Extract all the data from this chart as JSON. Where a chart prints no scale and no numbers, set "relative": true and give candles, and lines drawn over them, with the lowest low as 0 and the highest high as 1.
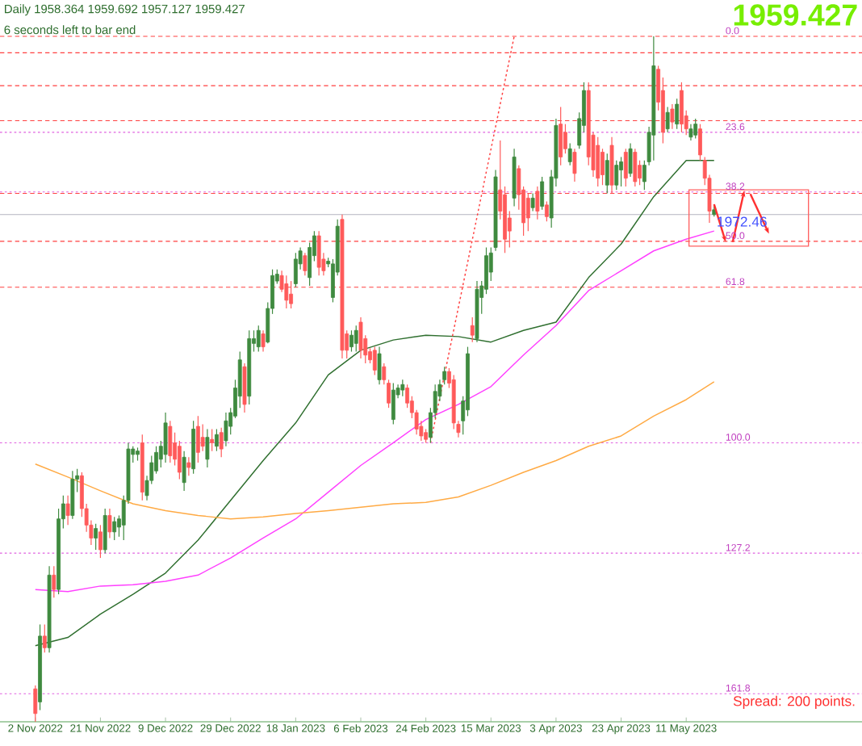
{
  "chart_data": {
    "type": "candlestick",
    "relative": true,
    "categories": [
      "2 Nov 2022",
      null,
      null,
      null,
      null,
      null,
      null,
      null,
      null,
      null,
      null,
      null,
      null,
      null,
      "21 Nov 2022",
      null,
      null,
      null,
      null,
      null,
      null,
      null,
      null,
      null,
      null,
      null,
      null,
      null,
      "9 Dec 2022",
      null,
      null,
      null,
      null,
      null,
      null,
      null,
      null,
      null,
      null,
      null,
      null,
      null,
      "29 Dec 2022",
      null,
      null,
      null,
      null,
      null,
      null,
      null,
      null,
      null,
      null,
      null,
      null,
      null,
      "18 Jan 2023",
      null,
      null,
      null,
      null,
      null,
      null,
      null,
      null,
      null,
      null,
      null,
      null,
      null,
      "6 Feb 2023",
      null,
      null,
      null,
      null,
      null,
      null,
      null,
      null,
      null,
      null,
      null,
      null,
      null,
      "24 Feb 2023",
      null,
      null,
      null,
      null,
      null,
      null,
      null,
      null,
      null,
      null,
      null,
      null,
      null,
      "15 Mar 2023",
      null,
      null,
      null,
      null,
      null,
      null,
      null,
      null,
      null,
      null,
      null,
      null,
      null,
      "3 Apr 2023",
      null,
      null,
      null,
      null,
      null,
      null,
      null,
      null,
      null,
      null,
      null,
      null,
      null,
      "23 Apr 2023",
      null,
      null,
      null,
      null,
      null,
      null,
      null,
      null,
      null,
      null,
      null,
      null,
      null,
      "11 May 2023",
      null,
      null,
      null,
      null,
      null,
      null
    ],
    "ohlc": [
      [
        0.048,
        0.053,
        0,
        0.012
      ],
      [
        0.029,
        0.142,
        0.017,
        0.125
      ],
      [
        0.125,
        0.142,
        0.101,
        0.108
      ],
      [
        0.108,
        0.227,
        0.101,
        0.214
      ],
      [
        0.214,
        0.227,
        0.181,
        0.193
      ],
      [
        0.193,
        0.311,
        0.186,
        0.296
      ],
      [
        0.296,
        0.33,
        0.282,
        0.318
      ],
      [
        0.318,
        0.33,
        0.287,
        0.301
      ],
      [
        0.301,
        0.366,
        0.296,
        0.354
      ],
      [
        0.354,
        0.369,
        0.335,
        0.359
      ],
      [
        0.359,
        0.364,
        0.299,
        0.311
      ],
      [
        0.311,
        0.318,
        0.277,
        0.287
      ],
      [
        0.287,
        0.294,
        0.258,
        0.268
      ],
      [
        0.268,
        0.289,
        0.251,
        0.282
      ],
      [
        0.277,
        0.287,
        0.239,
        0.251
      ],
      [
        0.251,
        0.311,
        0.246,
        0.301
      ],
      [
        0.301,
        0.311,
        0.268,
        0.277
      ],
      [
        0.277,
        0.299,
        0.265,
        0.292
      ],
      [
        0.284,
        0.301,
        0.27,
        0.296
      ],
      [
        0.287,
        0.33,
        0.265,
        0.323
      ],
      [
        0.323,
        0.407,
        0.318,
        0.398
      ],
      [
        0.39,
        0.402,
        0.378,
        0.398
      ],
      [
        0.39,
        0.4,
        0.381,
        0.395
      ],
      [
        0.407,
        0.419,
        0.323,
        0.335
      ],
      [
        0.33,
        0.359,
        0.323,
        0.352
      ],
      [
        0.352,
        0.388,
        0.347,
        0.378
      ],
      [
        0.366,
        0.402,
        0.362,
        0.393
      ],
      [
        0.383,
        0.41,
        0.371,
        0.402
      ],
      [
        0.39,
        0.451,
        0.378,
        0.436
      ],
      [
        0.431,
        0.439,
        0.378,
        0.388
      ],
      [
        0.407,
        0.422,
        0.374,
        0.383
      ],
      [
        0.402,
        0.41,
        0.354,
        0.364
      ],
      [
        0.349,
        0.395,
        0.337,
        0.386
      ],
      [
        0.378,
        0.386,
        0.359,
        0.371
      ],
      [
        0.369,
        0.439,
        0.362,
        0.427
      ],
      [
        0.431,
        0.446,
        0.378,
        0.393
      ],
      [
        0.415,
        0.434,
        0.395,
        0.402
      ],
      [
        0.383,
        0.427,
        0.371,
        0.415
      ],
      [
        0.412,
        0.427,
        0.395,
        0.407
      ],
      [
        0.402,
        0.427,
        0.395,
        0.419
      ],
      [
        0.422,
        0.429,
        0.386,
        0.398
      ],
      [
        0.41,
        0.451,
        0.402,
        0.439
      ],
      [
        0.431,
        0.458,
        0.419,
        0.451
      ],
      [
        0.446,
        0.499,
        0.443,
        0.487
      ],
      [
        0.475,
        0.54,
        0.458,
        0.528
      ],
      [
        0.518,
        0.523,
        0.451,
        0.463
      ],
      [
        0.475,
        0.571,
        0.463,
        0.559
      ],
      [
        0.552,
        0.571,
        0.54,
        0.559
      ],
      [
        0.547,
        0.578,
        0.54,
        0.571
      ],
      [
        0.566,
        0.571,
        0.54,
        0.547
      ],
      [
        0.554,
        0.612,
        0.552,
        0.603
      ],
      [
        0.603,
        0.66,
        0.595,
        0.651
      ],
      [
        0.643,
        0.66,
        0.639,
        0.653
      ],
      [
        0.651,
        0.658,
        0.627,
        0.631
      ],
      [
        0.639,
        0.651,
        0.603,
        0.615
      ],
      [
        0.624,
        0.643,
        0.603,
        0.61
      ],
      [
        0.639,
        0.684,
        0.634,
        0.675
      ],
      [
        0.668,
        0.692,
        0.66,
        0.687
      ],
      [
        0.68,
        0.684,
        0.651,
        0.658
      ],
      [
        0.648,
        0.699,
        0.636,
        0.692
      ],
      [
        0.68,
        0.716,
        0.672,
        0.709
      ],
      [
        0.709,
        0.716,
        0.651,
        0.663
      ],
      [
        0.675,
        0.684,
        0.651,
        0.658
      ],
      [
        0.668,
        0.677,
        0.663,
        0.672
      ],
      [
        0.619,
        0.675,
        0.612,
        0.668
      ],
      [
        0.656,
        0.733,
        0.651,
        0.723
      ],
      [
        0.733,
        0.74,
        0.53,
        0.542
      ],
      [
        0.566,
        0.571,
        0.53,
        0.542
      ],
      [
        0.547,
        0.571,
        0.54,
        0.564
      ],
      [
        0.552,
        0.578,
        0.54,
        0.571
      ],
      [
        0.583,
        0.59,
        0.53,
        0.542
      ],
      [
        0.559,
        0.564,
        0.523,
        0.535
      ],
      [
        0.54,
        0.545,
        0.523,
        0.528
      ],
      [
        0.542,
        0.547,
        0.506,
        0.513
      ],
      [
        0.499,
        0.547,
        0.492,
        0.537
      ],
      [
        0.518,
        0.523,
        0.492,
        0.499
      ],
      [
        0.494,
        0.499,
        0.458,
        0.465
      ],
      [
        0.441,
        0.494,
        0.434,
        0.484
      ],
      [
        0.477,
        0.492,
        0.472,
        0.487
      ],
      [
        0.484,
        0.499,
        0.475,
        0.492
      ],
      [
        0.487,
        0.492,
        0.458,
        0.465
      ],
      [
        0.468,
        0.475,
        0.443,
        0.451
      ],
      [
        0.451,
        0.455,
        0.419,
        0.427
      ],
      [
        0.431,
        0.439,
        0.41,
        0.417
      ],
      [
        0.422,
        0.427,
        0.407,
        0.412
      ],
      [
        0.415,
        0.458,
        0.407,
        0.451
      ],
      [
        0.451,
        0.492,
        0.443,
        0.482
      ],
      [
        0.475,
        0.499,
        0.468,
        0.492
      ],
      [
        0.499,
        0.518,
        0.492,
        0.511
      ],
      [
        0.511,
        0.516,
        0.487,
        0.494
      ],
      [
        0.499,
        0.506,
        0.427,
        0.436
      ],
      [
        0.434,
        0.439,
        0.415,
        0.422
      ],
      [
        0.439,
        0.475,
        0.419,
        0.468
      ],
      [
        0.455,
        0.547,
        0.446,
        0.537
      ],
      [
        0.578,
        0.59,
        0.554,
        0.564
      ],
      [
        0.559,
        0.643,
        0.554,
        0.631
      ],
      [
        0.619,
        0.643,
        0.595,
        0.636
      ],
      [
        0.631,
        0.692,
        0.624,
        0.68
      ],
      [
        0.656,
        0.692,
        0.643,
        0.684
      ],
      [
        0.692,
        0.805,
        0.687,
        0.795
      ],
      [
        0.776,
        0.848,
        0.733,
        0.745
      ],
      [
        0.769,
        0.781,
        0.684,
        0.704
      ],
      [
        0.735,
        0.745,
        0.692,
        0.716
      ],
      [
        0.764,
        0.836,
        0.752,
        0.824
      ],
      [
        0.807,
        0.812,
        0.747,
        0.769
      ],
      [
        0.776,
        0.781,
        0.709,
        0.728
      ],
      [
        0.764,
        0.771,
        0.716,
        0.735
      ],
      [
        0.75,
        0.771,
        0.745,
        0.764
      ],
      [
        0.774,
        0.781,
        0.733,
        0.745
      ],
      [
        0.752,
        0.795,
        0.747,
        0.788
      ],
      [
        0.754,
        0.759,
        0.73,
        0.737
      ],
      [
        0.735,
        0.805,
        0.721,
        0.795
      ],
      [
        0.793,
        0.88,
        0.781,
        0.87
      ],
      [
        0.872,
        0.897,
        0.812,
        0.824
      ],
      [
        0.86,
        0.872,
        0.829,
        0.836
      ],
      [
        0.817,
        0.844,
        0.812,
        0.836
      ],
      [
        0.831,
        0.836,
        0.788,
        0.8
      ],
      [
        0.841,
        0.889,
        0.836,
        0.88
      ],
      [
        0.87,
        0.933,
        0.86,
        0.921
      ],
      [
        0.921,
        0.933,
        0.812,
        0.824
      ],
      [
        0.856,
        0.86,
        0.795,
        0.805
      ],
      [
        0.841,
        0.853,
        0.781,
        0.793
      ],
      [
        0.831,
        0.836,
        0.783,
        0.798
      ],
      [
        0.783,
        0.829,
        0.771,
        0.819
      ],
      [
        0.841,
        0.853,
        0.771,
        0.783
      ],
      [
        0.783,
        0.819,
        0.776,
        0.812
      ],
      [
        0.805,
        0.824,
        0.781,
        0.817
      ],
      [
        0.831,
        0.836,
        0.781,
        0.793
      ],
      [
        0.8,
        0.844,
        0.795,
        0.836
      ],
      [
        0.831,
        0.836,
        0.781,
        0.788
      ],
      [
        0.812,
        0.819,
        0.783,
        0.793
      ],
      [
        0.788,
        0.819,
        0.776,
        0.812
      ],
      [
        0.817,
        0.868,
        0.812,
        0.86
      ],
      [
        0.856,
        1.0,
        0.819,
        0.957
      ],
      [
        0.952,
        0.957,
        0.892,
        0.904
      ],
      [
        0.921,
        0.94,
        0.844,
        0.86
      ],
      [
        0.865,
        0.897,
        0.86,
        0.889
      ],
      [
        0.894,
        0.901,
        0.865,
        0.875
      ],
      [
        0.872,
        0.909,
        0.865,
        0.901
      ],
      [
        0.921,
        0.933,
        0.86,
        0.872
      ],
      [
        0.884,
        0.892,
        0.856,
        0.865
      ],
      [
        0.853,
        0.872,
        0.848,
        0.865
      ],
      [
        0.856,
        0.88,
        0.851,
        0.872
      ],
      [
        0.865,
        0.872,
        0.819,
        0.827
      ],
      [
        0.819,
        0.824,
        0.783,
        0.793
      ],
      [
        0.793,
        0.798,
        0.728,
        0.745
      ],
      [
        0.74,
        0.754,
        0.737,
        0.747
      ]
    ],
    "series": [
      {
        "type": "line",
        "color": "#2f6f2f",
        "values": [
          0.111,
          null,
          null,
          null,
          null,
          null,
          null,
          0.123,
          null,
          null,
          null,
          null,
          null,
          null,
          0.157,
          null,
          null,
          null,
          null,
          null,
          null,
          0.186,
          null,
          null,
          null,
          null,
          null,
          null,
          0.217,
          null,
          null,
          null,
          null,
          null,
          null,
          0.265,
          null,
          null,
          null,
          null,
          null,
          null,
          0.323,
          null,
          null,
          null,
          null,
          null,
          null,
          0.381,
          null,
          null,
          null,
          null,
          null,
          null,
          0.436,
          null,
          null,
          null,
          null,
          null,
          null,
          0.506,
          null,
          null,
          null,
          null,
          null,
          null,
          0.542,
          null,
          null,
          null,
          null,
          null,
          null,
          0.557,
          null,
          null,
          null,
          null,
          null,
          null,
          0.564,
          null,
          null,
          null,
          null,
          null,
          null,
          0.562,
          null,
          null,
          null,
          null,
          null,
          null,
          0.554,
          null,
          null,
          null,
          null,
          null,
          null,
          0.571,
          null,
          null,
          null,
          null,
          null,
          null,
          0.583,
          null,
          null,
          null,
          null,
          null,
          null,
          0.648,
          null,
          null,
          null,
          null,
          null,
          null,
          0.697,
          null,
          null,
          null,
          null,
          null,
          null,
          0.766,
          null,
          null,
          null,
          null,
          null,
          null,
          0.819,
          null,
          null,
          null,
          null,
          null,
          0.819
        ]
      },
      {
        "type": "line",
        "color": "#ff40ff",
        "values": [
          0.193,
          null,
          null,
          null,
          null,
          null,
          null,
          0.19,
          null,
          null,
          null,
          null,
          null,
          null,
          0.198,
          null,
          null,
          null,
          null,
          null,
          null,
          0.2,
          null,
          null,
          null,
          null,
          null,
          null,
          0.205,
          null,
          null,
          null,
          null,
          null,
          null,
          0.214,
          null,
          null,
          null,
          null,
          null,
          null,
          0.239,
          null,
          null,
          null,
          null,
          null,
          null,
          0.268,
          null,
          null,
          null,
          null,
          null,
          null,
          0.296,
          null,
          null,
          null,
          null,
          null,
          null,
          0.335,
          null,
          null,
          null,
          null,
          null,
          null,
          0.374,
          null,
          null,
          null,
          null,
          null,
          null,
          0.407,
          null,
          null,
          null,
          null,
          null,
          null,
          0.441,
          null,
          null,
          null,
          null,
          null,
          null,
          0.463,
          null,
          null,
          null,
          null,
          null,
          null,
          0.489,
          null,
          null,
          null,
          null,
          null,
          null,
          0.535,
          null,
          null,
          null,
          null,
          null,
          null,
          0.578,
          null,
          null,
          null,
          null,
          null,
          null,
          0.629,
          null,
          null,
          null,
          null,
          null,
          null,
          0.658,
          null,
          null,
          null,
          null,
          null,
          null,
          0.687,
          null,
          null,
          null,
          null,
          null,
          null,
          0.704,
          null,
          null,
          null,
          null,
          null,
          0.716
        ]
      },
      {
        "type": "line",
        "color": "#ffaa44",
        "values": [
          0.376,
          null,
          null,
          null,
          null,
          null,
          null,
          0.357,
          null,
          null,
          null,
          null,
          null,
          null,
          0.337,
          null,
          null,
          null,
          null,
          null,
          null,
          0.318,
          null,
          null,
          null,
          null,
          null,
          null,
          0.308,
          null,
          null,
          null,
          null,
          null,
          null,
          0.301,
          null,
          null,
          null,
          null,
          null,
          null,
          0.296,
          null,
          null,
          null,
          null,
          null,
          null,
          0.299,
          null,
          null,
          null,
          null,
          null,
          null,
          0.304,
          null,
          null,
          null,
          null,
          null,
          null,
          0.308,
          null,
          null,
          null,
          null,
          null,
          null,
          0.313,
          null,
          null,
          null,
          null,
          null,
          null,
          0.318,
          null,
          null,
          null,
          null,
          null,
          null,
          0.32,
          null,
          null,
          null,
          null,
          null,
          null,
          0.328,
          null,
          null,
          null,
          null,
          null,
          null,
          0.345,
          null,
          null,
          null,
          null,
          null,
          null,
          0.364,
          null,
          null,
          null,
          null,
          null,
          null,
          0.381,
          null,
          null,
          null,
          null,
          null,
          null,
          0.402,
          null,
          null,
          null,
          null,
          null,
          null,
          0.417,
          null,
          null,
          null,
          null,
          null,
          null,
          0.446,
          null,
          null,
          null,
          null,
          null,
          null,
          0.47,
          null,
          null,
          null,
          null,
          null,
          0.496
        ]
      },
      {
        "type": "line",
        "color": "#ff4040",
        "line_style": "dotted",
        "values": [
          null,
          null,
          null,
          null,
          null,
          null,
          null,
          null,
          null,
          null,
          null,
          null,
          null,
          null,
          null,
          null,
          null,
          null,
          null,
          null,
          null,
          null,
          null,
          null,
          null,
          null,
          null,
          null,
          null,
          null,
          null,
          null,
          null,
          null,
          null,
          null,
          null,
          null,
          null,
          null,
          null,
          null,
          null,
          null,
          null,
          null,
          null,
          null,
          null,
          null,
          null,
          null,
          null,
          null,
          null,
          null,
          null,
          null,
          null,
          null,
          null,
          null,
          null,
          null,
          null,
          null,
          null,
          null,
          null,
          null,
          null,
          null,
          null,
          null,
          null,
          null,
          null,
          null,
          null,
          null,
          null,
          null,
          null,
          null,
          null,
          0.407,
          null,
          null,
          null,
          null,
          null,
          null,
          null,
          null,
          null,
          null,
          null,
          null,
          null,
          null,
          null,
          null,
          null,
          1.0,
          null,
          null,
          null,
          null,
          null,
          null,
          null,
          null,
          null,
          null,
          null,
          null,
          null,
          null,
          null,
          null,
          null,
          null,
          null,
          null,
          null,
          null,
          null,
          null,
          null,
          null,
          null,
          null,
          null,
          null,
          null,
          null,
          null,
          null,
          null,
          null,
          null,
          null,
          null,
          null,
          null,
          null,
          null
        ]
      }
    ],
    "ref_lines": [
      {
        "axis": "y",
        "value": 1.0,
        "color": "#ff4040",
        "line_style": "dashed"
      },
      {
        "axis": "y",
        "value": 0.976,
        "color": "#ff4040",
        "line_style": "dashed"
      },
      {
        "axis": "y",
        "value": 0.928,
        "color": "#ff4040",
        "line_style": "dashed"
      },
      {
        "axis": "y",
        "value": 0.877,
        "color": "#ff4040",
        "line_style": "dashed"
      },
      {
        "axis": "y",
        "value": 0.771,
        "color": "#ff4040",
        "line_style": "dashed"
      },
      {
        "axis": "y",
        "value": 0.701,
        "color": "#ff4040",
        "line_style": "dashed"
      },
      {
        "axis": "y",
        "value": 0.634,
        "color": "#ff4040",
        "line_style": "dashed"
      },
      {
        "axis": "y",
        "value": 0.74,
        "color": "#b4b4c0",
        "line_style": "solid"
      },
      {
        "axis": "y",
        "value": 0.86,
        "color": "#e060e0",
        "line_style": "dotted"
      },
      {
        "axis": "y",
        "value": 0.773,
        "color": "#e060e0",
        "line_style": "dotted"
      },
      {
        "axis": "y",
        "value": 0.407,
        "color": "#e060e0",
        "line_style": "dotted"
      },
      {
        "axis": "y",
        "value": 0.246,
        "color": "#e060e0",
        "line_style": "dotted"
      },
      {
        "axis": "y",
        "value": 0.041,
        "color": "#e060e0",
        "line_style": "dotted"
      }
    ],
    "annotations": [
      "Daily  1958.364 1959.692 1957.127 1959.427",
      "6 seconds left to bar end",
      "1959.427",
      {
        "text": "1972.46",
        "y": 0.74
      },
      "Spread: 200 points.",
      {
        "text": "0.0",
        "y": 1.0
      },
      {
        "text": "23.6",
        "y": 0.86
      },
      {
        "text": "38.2",
        "y": 0.773
      },
      {
        "text": "50.0",
        "y": 0.701
      },
      {
        "text": "61.8",
        "y": 0.634
      },
      {
        "text": "100.0",
        "y": 0.407
      },
      {
        "text": "127.2",
        "y": 0.246
      },
      {
        "text": "161.8",
        "y": 0.041
      }
    ]
  }
}
